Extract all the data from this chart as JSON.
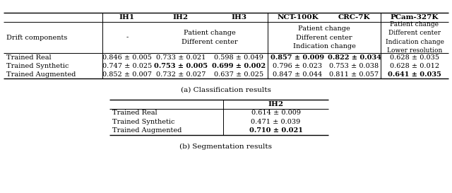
{
  "title_a": "(a) Classification results",
  "title_b": "(b) Segmentation results",
  "col_headers_a": [
    "IH1",
    "IH2",
    "IH3",
    "NCT-100K",
    "CRC-7K",
    "PCam-327K"
  ],
  "drift_row_label": "Drift components",
  "rows_a": [
    [
      "Trained Real",
      "0.846 ± 0.005",
      "0.733 ± 0.021",
      "0.598 ± 0.049",
      "0.857 ± 0.009",
      "0.822 ± 0.034",
      "0.628 ± 0.035"
    ],
    [
      "Trained Synthetic",
      "0.747 ± 0.025",
      "0.753 ± 0.005",
      "0.699 ± 0.002",
      "0.796 ± 0.023",
      "0.753 ± 0.038",
      "0.628 ± 0.012"
    ],
    [
      "Trained Augmented",
      "0.852 ± 0.007",
      "0.732 ± 0.027",
      "0.637 ± 0.025",
      "0.847 ± 0.044",
      "0.811 ± 0.057",
      "0.641 ± 0.035"
    ]
  ],
  "bold_a": [
    [
      false,
      false,
      false,
      false,
      true,
      true,
      false
    ],
    [
      false,
      false,
      true,
      true,
      false,
      false,
      false
    ],
    [
      true,
      false,
      false,
      false,
      false,
      false,
      true
    ]
  ],
  "col_headers_b": [
    "IH2"
  ],
  "rows_b": [
    [
      "Trained Real",
      "0.614 ± 0.009"
    ],
    [
      "Trained Synthetic",
      "0.471 ± 0.039"
    ],
    [
      "Trained Augmented",
      "0.710 ± 0.021"
    ]
  ],
  "bold_b": [
    [
      false,
      false
    ],
    [
      false,
      false
    ],
    [
      true,
      true
    ]
  ],
  "bg_color": "white",
  "text_color": "black",
  "font_size": 7.0,
  "header_font_size": 7.5,
  "caption_font_size": 7.5
}
